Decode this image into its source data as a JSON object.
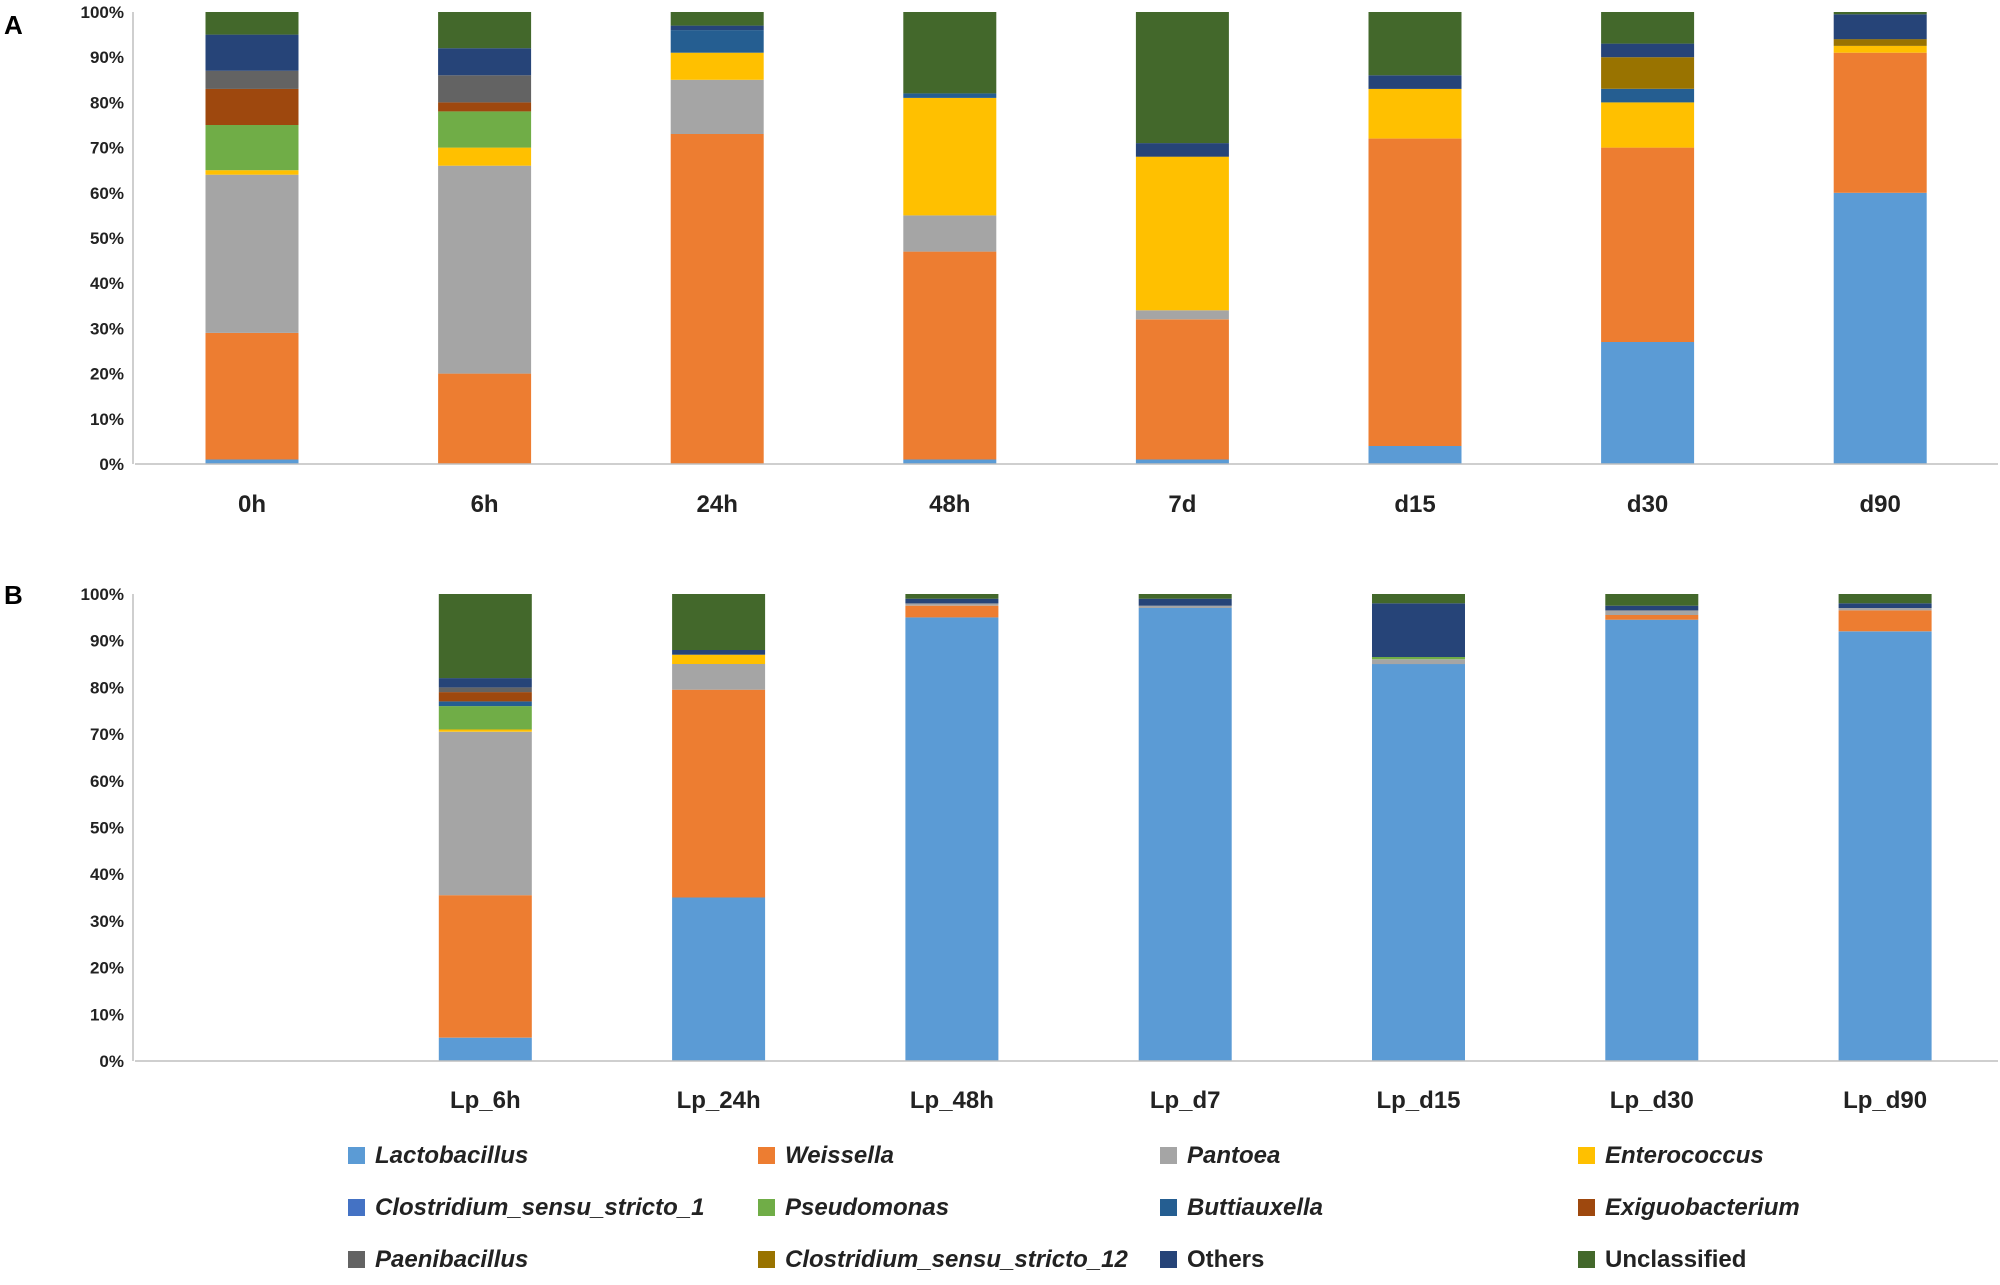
{
  "chart_data": [
    {
      "panel": "A",
      "type": "stacked-bar-percent",
      "categories": [
        "0h",
        "6h",
        "24h",
        "48h",
        "7d",
        "d15",
        "d30",
        "d90"
      ],
      "ytick_labels": [
        "0%",
        "10%",
        "20%",
        "30%",
        "40%",
        "50%",
        "60%",
        "70%",
        "80%",
        "90%",
        "100%"
      ],
      "ylim": [
        0,
        100
      ],
      "series": [
        {
          "key": "lactobacillus",
          "values": [
            1,
            0,
            0,
            1,
            1,
            4,
            27,
            60
          ]
        },
        {
          "key": "weissella",
          "values": [
            28,
            20,
            73,
            46,
            31,
            68,
            43,
            31
          ]
        },
        {
          "key": "pantoea",
          "values": [
            35,
            46,
            12,
            8,
            2,
            0,
            0,
            0
          ]
        },
        {
          "key": "enterococcus",
          "values": [
            1,
            4,
            6,
            26,
            34,
            11,
            10,
            1.5
          ]
        },
        {
          "key": "clostridium_1",
          "values": [
            0,
            0,
            0,
            0,
            0,
            0,
            0,
            0
          ]
        },
        {
          "key": "pseudomonas",
          "values": [
            10,
            8,
            0,
            0,
            0,
            0,
            0,
            0
          ]
        },
        {
          "key": "buttiauxella",
          "values": [
            0,
            0,
            5,
            1,
            0,
            0,
            3,
            0
          ]
        },
        {
          "key": "exiguobacterium",
          "values": [
            8,
            2,
            0,
            0,
            0,
            0,
            0,
            0
          ]
        },
        {
          "key": "paenibacillus",
          "values": [
            4,
            6,
            0,
            0,
            0,
            0,
            0,
            0
          ]
        },
        {
          "key": "clostridium_12",
          "values": [
            0,
            0,
            0,
            0,
            0,
            0,
            7,
            1.5
          ]
        },
        {
          "key": "others",
          "values": [
            8,
            6,
            1,
            0,
            3,
            3,
            3,
            5.5
          ]
        },
        {
          "key": "unclassified",
          "values": [
            5,
            8,
            3,
            18,
            29,
            14,
            7,
            0.5
          ]
        }
      ]
    },
    {
      "panel": "B",
      "type": "stacked-bar-percent",
      "categories": [
        "",
        "Lp_6h",
        "Lp_24h",
        "Lp_48h",
        "Lp_d7",
        "Lp_d15",
        "Lp_d30",
        "Lp_d90"
      ],
      "ytick_labels": [
        "0%",
        "10%",
        "20%",
        "30%",
        "40%",
        "50%",
        "60%",
        "70%",
        "80%",
        "90%",
        "100%"
      ],
      "ylim": [
        0,
        100
      ],
      "series": [
        {
          "key": "lactobacillus",
          "values": [
            0,
            5,
            35,
            95,
            97,
            85,
            94.5,
            92
          ]
        },
        {
          "key": "weissella",
          "values": [
            0,
            30.5,
            44.5,
            2.5,
            0,
            0,
            1,
            4.5
          ]
        },
        {
          "key": "pantoea",
          "values": [
            0,
            35,
            5.5,
            0.5,
            0.5,
            1,
            1,
            0.5
          ]
        },
        {
          "key": "enterococcus",
          "values": [
            0,
            0.5,
            2,
            0,
            0,
            0,
            0,
            0
          ]
        },
        {
          "key": "clostridium_1",
          "values": [
            0,
            0,
            0,
            0,
            0,
            0,
            0,
            0
          ]
        },
        {
          "key": "pseudomonas",
          "values": [
            0,
            5,
            0,
            0,
            0,
            0.5,
            0,
            0
          ]
        },
        {
          "key": "buttiauxella",
          "values": [
            0,
            1,
            0,
            0,
            0,
            0,
            0,
            0
          ]
        },
        {
          "key": "exiguobacterium",
          "values": [
            0,
            2,
            0,
            0,
            0,
            0,
            0,
            0
          ]
        },
        {
          "key": "paenibacillus",
          "values": [
            0,
            1,
            0,
            0,
            0,
            0,
            0,
            0
          ]
        },
        {
          "key": "clostridium_12",
          "values": [
            0,
            0,
            0,
            0,
            0,
            0,
            0,
            0
          ]
        },
        {
          "key": "others",
          "values": [
            0,
            2,
            1,
            1,
            1.5,
            11.5,
            1,
            1
          ]
        },
        {
          "key": "unclassified",
          "values": [
            0,
            18,
            12,
            1,
            1,
            2,
            2.5,
            2
          ]
        }
      ]
    }
  ],
  "legend": [
    {
      "key": "lactobacillus",
      "label": "Lactobacillus",
      "color": "#5b9bd5",
      "italic": true
    },
    {
      "key": "weissella",
      "label": "Weissella",
      "color": "#ed7d31",
      "italic": true
    },
    {
      "key": "pantoea",
      "label": "Pantoea",
      "color": "#a5a5a5",
      "italic": true
    },
    {
      "key": "enterococcus",
      "label": "Enterococcus",
      "color": "#ffc000",
      "italic": true
    },
    {
      "key": "clostridium_1",
      "label": "Clostridium_sensu_stricto_1",
      "color": "#4472c4",
      "italic": true
    },
    {
      "key": "pseudomonas",
      "label": "Pseudomonas",
      "color": "#70ad47",
      "italic": true
    },
    {
      "key": "buttiauxella",
      "label": "Buttiauxella",
      "color": "#255e91",
      "italic": true
    },
    {
      "key": "exiguobacterium",
      "label": "Exiguobacterium",
      "color": "#9e480e",
      "italic": true
    },
    {
      "key": "paenibacillus",
      "label": "Paenibacillus",
      "color": "#636363",
      "italic": true
    },
    {
      "key": "clostridium_12",
      "label": "Clostridium_sensu_stricto_12",
      "color": "#997300",
      "italic": true
    },
    {
      "key": "others",
      "label": "Others",
      "color": "#264478",
      "italic": false
    },
    {
      "key": "unclassified",
      "label": "Unclassified",
      "color": "#43682b",
      "italic": false
    }
  ]
}
